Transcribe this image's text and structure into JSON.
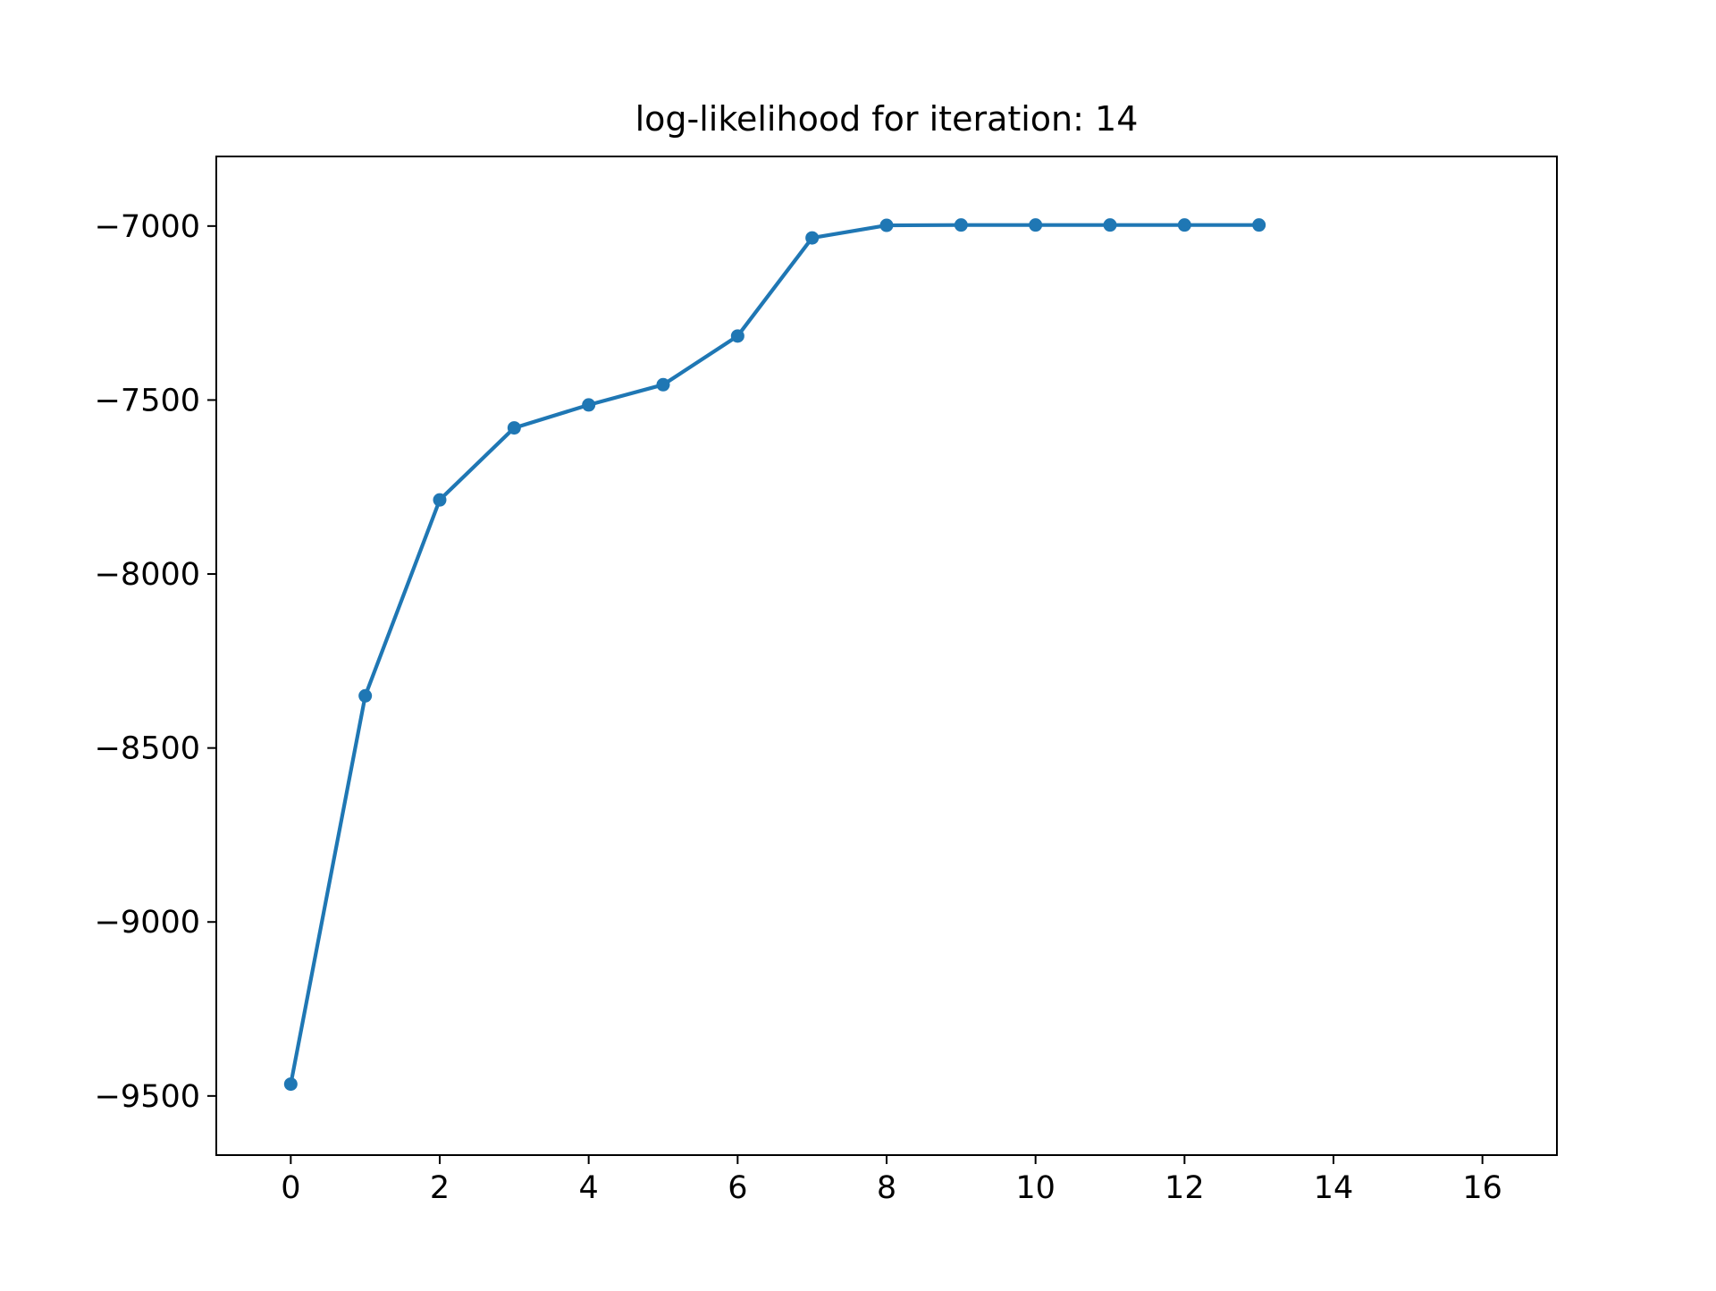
{
  "chart_data": {
    "type": "line",
    "title": "log-likelihood for iteration: 14",
    "xlabel": "",
    "ylabel": "",
    "xlim": [
      -1,
      17
    ],
    "ylim": [
      -9670,
      -6800
    ],
    "x_ticks": [
      0,
      2,
      4,
      6,
      8,
      10,
      12,
      14,
      16
    ],
    "x_tick_labels": [
      "0",
      "2",
      "4",
      "6",
      "8",
      "10",
      "12",
      "14",
      "16"
    ],
    "y_ticks": [
      -7000,
      -7500,
      -8000,
      -8500,
      -9000,
      -9500
    ],
    "y_tick_labels": [
      "−7000",
      "−7500",
      "−8000",
      "−8500",
      "−9000",
      "−9500"
    ],
    "grid": false,
    "series": [
      {
        "color": "#1f77b4",
        "marker": "circle",
        "x": [
          0,
          1,
          2,
          3,
          4,
          5,
          6,
          7,
          8,
          9,
          10,
          11,
          12,
          13
        ],
        "y": [
          -9466,
          -8350,
          -7787,
          -7580,
          -7514,
          -7456,
          -7316,
          -7034,
          -6998,
          -6997,
          -6997,
          -6997,
          -6997,
          -6997
        ]
      }
    ]
  }
}
